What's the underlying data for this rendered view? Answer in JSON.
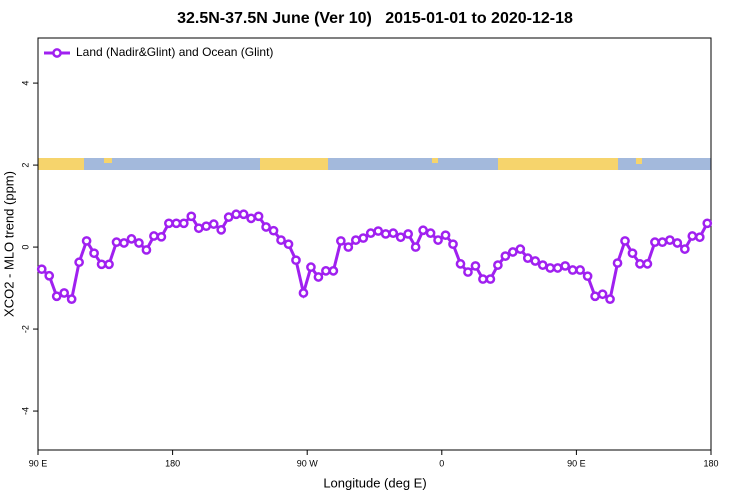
{
  "chart_data": {
    "type": "line",
    "title": "32.5N-37.5N June (Ver 10)   2015-01-01 to 2020-12-18",
    "x_label": "Longitude (deg E)",
    "y_label": "XCO2 - MLO trend (ppm)",
    "xlim": [
      90,
      540
    ],
    "xticks": [
      {
        "value": 90,
        "label": "90 E"
      },
      180,
      {
        "value": 270,
        "label": "90 W"
      },
      {
        "value": 360,
        "label": "0"
      },
      {
        "value": 450,
        "label": "90 E"
      },
      {
        "value": 540,
        "label": "180"
      }
    ],
    "ylim": [
      -4.95,
      5.1
    ],
    "yticks": [
      -4,
      -2,
      0,
      2,
      4
    ],
    "legend_position": "top-left",
    "x": [
      92.5,
      97.5,
      102.5,
      107.5,
      112.5,
      117.5,
      122.5,
      127.5,
      132.5,
      137.5,
      142.5,
      147.5,
      152.5,
      157.5,
      162.5,
      167.5,
      172.5,
      177.5,
      182.5,
      187.5,
      192.5,
      197.5,
      202.5,
      207.5,
      212.5,
      217.5,
      222.5,
      227.5,
      232.5,
      237.5,
      242.5,
      247.5,
      252.5,
      257.5,
      262.5,
      267.5,
      272.5,
      277.5,
      282.5,
      287.5,
      292.5,
      297.5,
      302.5,
      307.5,
      312.5,
      317.5,
      322.5,
      327.5,
      332.5,
      337.5,
      342.5,
      347.5,
      352.5,
      357.5,
      362.5,
      367.5,
      372.5,
      377.5,
      382.5,
      387.5,
      392.5,
      397.5,
      402.5,
      407.5,
      412.5,
      417.5,
      422.5,
      427.5,
      432.5,
      437.5,
      442.5,
      447.5,
      452.5,
      457.5,
      462.5,
      467.5,
      472.5,
      477.5,
      482.5,
      487.5,
      492.5,
      497.5,
      502.5,
      507.5,
      512.5,
      517.5,
      522.5,
      527.5,
      532.5,
      537.5
    ],
    "series": [
      {
        "name": "Land (Nadir&Glint) and Ocean (Glint)",
        "color": "#a020f0",
        "values": [
          -0.54,
          -0.7,
          -1.2,
          -1.12,
          -1.27,
          -0.37,
          0.15,
          -0.15,
          -0.42,
          -0.42,
          0.12,
          0.1,
          0.2,
          0.1,
          -0.07,
          0.27,
          0.25,
          0.58,
          0.58,
          0.58,
          0.75,
          0.46,
          0.51,
          0.56,
          0.42,
          0.73,
          0.8,
          0.8,
          0.7,
          0.75,
          0.49,
          0.4,
          0.17,
          0.07,
          -0.32,
          -1.12,
          -0.49,
          -0.73,
          -0.58,
          -0.58,
          0.15,
          0,
          0.17,
          0.22,
          0.34,
          0.39,
          0.32,
          0.34,
          0.24,
          0.32,
          0,
          0.41,
          0.34,
          0.17,
          0.29,
          0.07,
          -0.41,
          -0.61,
          -0.46,
          -0.78,
          -0.78,
          -0.44,
          -0.22,
          -0.12,
          -0.05,
          -0.27,
          -0.34,
          -0.44,
          -0.51,
          -0.51,
          -0.46,
          -0.56,
          -0.56,
          -0.71,
          -1.2,
          -1.15,
          -1.27,
          -0.39,
          0.15,
          -0.15,
          -0.41,
          -0.41,
          0.12,
          0.12,
          0.17,
          0.1,
          -0.05,
          0.27,
          0.24,
          0.58
        ]
      }
    ]
  }
}
